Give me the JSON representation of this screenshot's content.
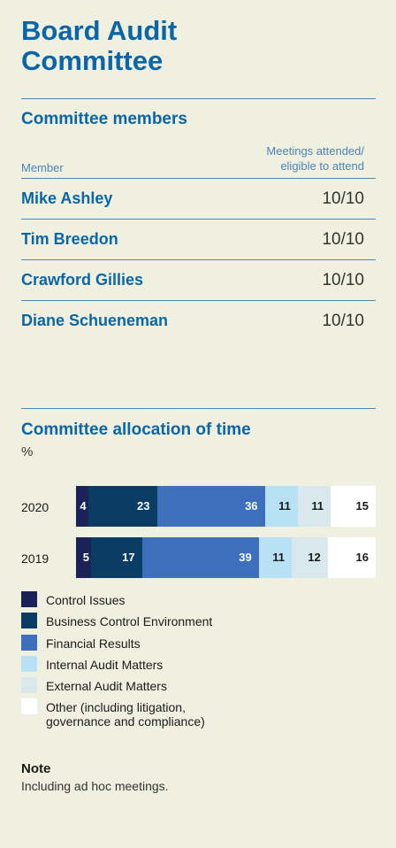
{
  "title_line1": "Board Audit",
  "title_line2": "Committee",
  "members": {
    "heading": "Committee members",
    "col_member": "Member",
    "col_meetings_line1": "Meetings attended/",
    "col_meetings_line2": "eligible to attend",
    "rows": [
      {
        "name": "Mike Ashley",
        "value": "10/10"
      },
      {
        "name": "Tim Breedon",
        "value": "10/10"
      },
      {
        "name": "Crawford Gillies",
        "value": "10/10"
      },
      {
        "name": "Diane Schueneman",
        "value": "10/10"
      }
    ]
  },
  "allocation": {
    "heading": "Committee allocation of time",
    "unit": "%"
  },
  "chart_data": {
    "type": "bar",
    "orientation": "horizontal-stacked",
    "categories": [
      "2020",
      "2019"
    ],
    "series": [
      {
        "name": "Control Issues",
        "values": [
          4,
          5
        ],
        "color": "#1a2257"
      },
      {
        "name": "Business Control Environment",
        "values": [
          23,
          17
        ],
        "color": "#0b3d64"
      },
      {
        "name": "Financial Results",
        "values": [
          36,
          39
        ],
        "color": "#3e6fbd"
      },
      {
        "name": "Internal Audit Matters",
        "values": [
          11,
          11
        ],
        "color": "#b9e1f6"
      },
      {
        "name": "External Audit Matters",
        "values": [
          11,
          12
        ],
        "color": "#d8e8ec"
      },
      {
        "name": "Other (including litigation, governance and compliance)",
        "values": [
          15,
          16
        ],
        "color": "#ffffff"
      }
    ],
    "label_colors": [
      "#ffffff",
      "#ffffff",
      "#ffffff",
      "#1a1a1a",
      "#1a1a1a",
      "#1a1a1a"
    ],
    "legend_lines": [
      [
        "Control Issues"
      ],
      [
        "Business Control Environment"
      ],
      [
        "Financial Results"
      ],
      [
        "Internal Audit Matters"
      ],
      [
        "External Audit Matters"
      ],
      [
        "Other (including litigation,",
        "governance and compliance)"
      ]
    ]
  },
  "note": {
    "title": "Note",
    "text": "Including ad hoc meetings."
  }
}
